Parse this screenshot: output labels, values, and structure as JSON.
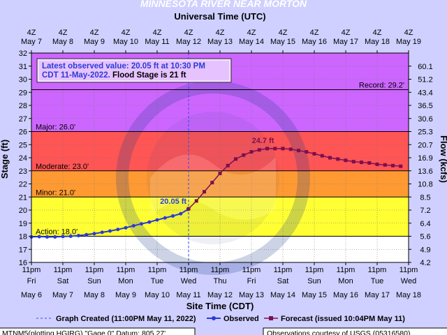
{
  "title": "MINNESOTA RIVER NEAR MORTON",
  "top_axis_title": "Universal Time (UTC)",
  "bottom_axis_title": "Site Time (CDT)",
  "y_axis_title": "Stage (ft)",
  "y2_axis_title": "Flow (kcfs)",
  "info_box": {
    "line1": "Latest observed value: 20.05 ft at 10:30 PM",
    "line2_blue": "CDT 11-May-2022.",
    "line2_black": " Flood Stage is 21 ft"
  },
  "legend": {
    "created": "Graph Created (11:00PM May 11, 2022)",
    "observed": "Observed",
    "forecast": "Forecast (issued 10:04PM May 11)"
  },
  "footer": {
    "left": "MTNM5(plotting HGIRG) \"Gage 0\" Datum: 805.27'",
    "right": "Observations courtesy of USGS (05316580)"
  },
  "colors": {
    "record": "#cc66ff",
    "major": "#ff5555",
    "moderate": "#ff9a33",
    "minor": "#ffff33",
    "action": "#ffff33",
    "normal": "#ffffff",
    "observed": "#2a3bd6",
    "forecast": "#7a1050",
    "created_line": "#3344ff"
  },
  "chart_data": {
    "type": "line",
    "ylim": [
      16,
      32
    ],
    "y_ticks": [
      "16",
      "17",
      "18",
      "19",
      "20",
      "21",
      "22",
      "23",
      "24",
      "25",
      "26",
      "27",
      "28",
      "29",
      "30",
      "31",
      "32"
    ],
    "y2_ticks": [
      "4.2",
      "4.9",
      "5.6",
      "6.4",
      "7.2",
      "8.5",
      "10.8",
      "13.6",
      "16.9",
      "20.7",
      "25.3",
      "30.6",
      "36.5",
      "43.4",
      "51.2",
      "60.1"
    ],
    "y2_tick_stage": [
      16,
      17,
      18,
      19,
      20,
      21,
      22,
      23,
      24,
      25,
      26,
      27,
      28,
      29,
      30,
      31
    ],
    "top_ticks": [
      {
        "h": "4Z",
        "d": "May  7"
      },
      {
        "h": "4Z",
        "d": "May  8"
      },
      {
        "h": "4Z",
        "d": "May  9"
      },
      {
        "h": "4Z",
        "d": "May 10"
      },
      {
        "h": "4Z",
        "d": "May 11"
      },
      {
        "h": "4Z",
        "d": "May 12"
      },
      {
        "h": "4Z",
        "d": "May 13"
      },
      {
        "h": "4Z",
        "d": "May 14"
      },
      {
        "h": "4Z",
        "d": "May 15"
      },
      {
        "h": "4Z",
        "d": "May 16"
      },
      {
        "h": "4Z",
        "d": "May 17"
      },
      {
        "h": "4Z",
        "d": "May 18"
      },
      {
        "h": "4Z",
        "d": "May 19"
      }
    ],
    "bottom_ticks": [
      {
        "t": "11pm",
        "d": "Fri",
        "date": "May 6"
      },
      {
        "t": "11pm",
        "d": "Sat",
        "date": "May 7"
      },
      {
        "t": "11pm",
        "d": "Sun",
        "date": "May 8"
      },
      {
        "t": "11pm",
        "d": "Mon",
        "date": "May 9"
      },
      {
        "t": "11pm",
        "d": "Tue",
        "date": "May 10"
      },
      {
        "t": "11pm",
        "d": "Wed",
        "date": "May 11"
      },
      {
        "t": "11pm",
        "d": "Thu",
        "date": "May 12"
      },
      {
        "t": "11pm",
        "d": "Fri",
        "date": "May 13"
      },
      {
        "t": "11pm",
        "d": "Sat",
        "date": "May 14"
      },
      {
        "t": "11pm",
        "d": "Sun",
        "date": "May 15"
      },
      {
        "t": "11pm",
        "d": "Mon",
        "date": "May 16"
      },
      {
        "t": "11pm",
        "d": "Tue",
        "date": "May 17"
      },
      {
        "t": "11pm",
        "d": "Wed",
        "date": "May 18"
      }
    ],
    "x_range_days": [
      0,
      12
    ],
    "graph_created_day": 5,
    "stages": [
      {
        "name": "Record",
        "label": "Record: 29.2'",
        "value": 29.2,
        "color": "#cc66ff"
      },
      {
        "name": "Major",
        "label": "Major: 26.0'",
        "value": 26.0,
        "color": "#ff5555"
      },
      {
        "name": "Moderate",
        "label": "Moderate: 23.0'",
        "value": 23.0,
        "color": "#ff9a33"
      },
      {
        "name": "Minor",
        "label": "Minor: 21.0'",
        "value": 21.0,
        "color": "#ffff33"
      },
      {
        "name": "Action",
        "label": "Action: 18.0'",
        "value": 18.0,
        "color": "#ffff33"
      }
    ],
    "observed": {
      "x": [
        0,
        0.25,
        0.5,
        0.75,
        1.0,
        1.25,
        1.5,
        1.75,
        2.0,
        2.25,
        2.5,
        2.75,
        3.0,
        3.25,
        3.5,
        3.75,
        4.0,
        4.25,
        4.5,
        4.75,
        4.98
      ],
      "y": [
        17.95,
        17.97,
        17.95,
        17.95,
        17.98,
        18.0,
        18.05,
        18.12,
        18.2,
        18.3,
        18.4,
        18.52,
        18.65,
        18.8,
        18.95,
        19.08,
        19.25,
        19.4,
        19.55,
        19.72,
        20.05
      ]
    },
    "observed_label": "20.05 ft",
    "forecast": {
      "x": [
        5.0,
        5.25,
        5.5,
        5.75,
        6.0,
        6.25,
        6.5,
        6.75,
        7.0,
        7.25,
        7.5,
        7.75,
        8.0,
        8.25,
        8.5,
        8.75,
        9.0,
        9.25,
        9.5,
        9.75,
        10.0,
        10.25,
        10.5,
        10.75,
        11.0,
        11.25,
        11.5,
        11.75
      ],
      "y": [
        20.1,
        20.7,
        21.4,
        22.1,
        22.8,
        23.4,
        23.9,
        24.2,
        24.45,
        24.6,
        24.7,
        24.7,
        24.7,
        24.65,
        24.55,
        24.45,
        24.3,
        24.15,
        24.0,
        23.9,
        23.8,
        23.7,
        23.65,
        23.6,
        23.5,
        23.45,
        23.4,
        23.35
      ]
    },
    "forecast_peak_label": "24.7 ft"
  }
}
